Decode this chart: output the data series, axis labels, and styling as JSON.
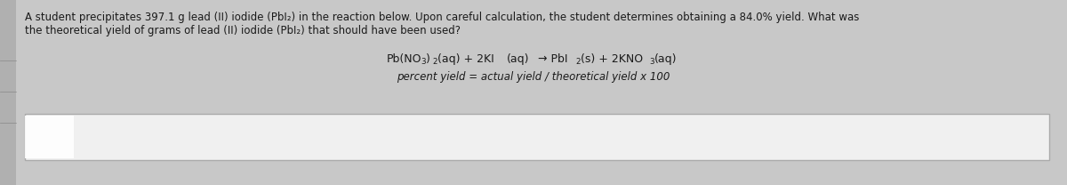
{
  "background_color": "#c8c8c8",
  "panel_color": "#c8c8c8",
  "box_color": "#e8e8e8",
  "box_border_color": "#999999",
  "sidebar_color": "#b0b0b0",
  "paragraph_line1": "A student precipitates 397.1 g lead (II) iodide (PbI₂) in the reaction below. Upon careful calculation, the student determines obtaining a 84.0% yield. What was",
  "paragraph_line2": "the theoretical yield of grams of lead (II) iodide (PbI₂) that should have been used?",
  "equation_text": "Pb(NO₃)₂(aq) + 2KI(aq) → PbI₂(s) + 2KNO₃(aq)",
  "percent_yield_text": "percent yield = actual yield / theoretical yield x 100",
  "text_color": "#1a1a1a",
  "eq_subscript_color": "#1a1a1a",
  "font_size_para": 8.5,
  "font_size_eq": 9.0,
  "font_size_py": 8.5,
  "answer_box_facecolor": "#f0f0f0",
  "answer_box_edgecolor": "#aaaaaa"
}
